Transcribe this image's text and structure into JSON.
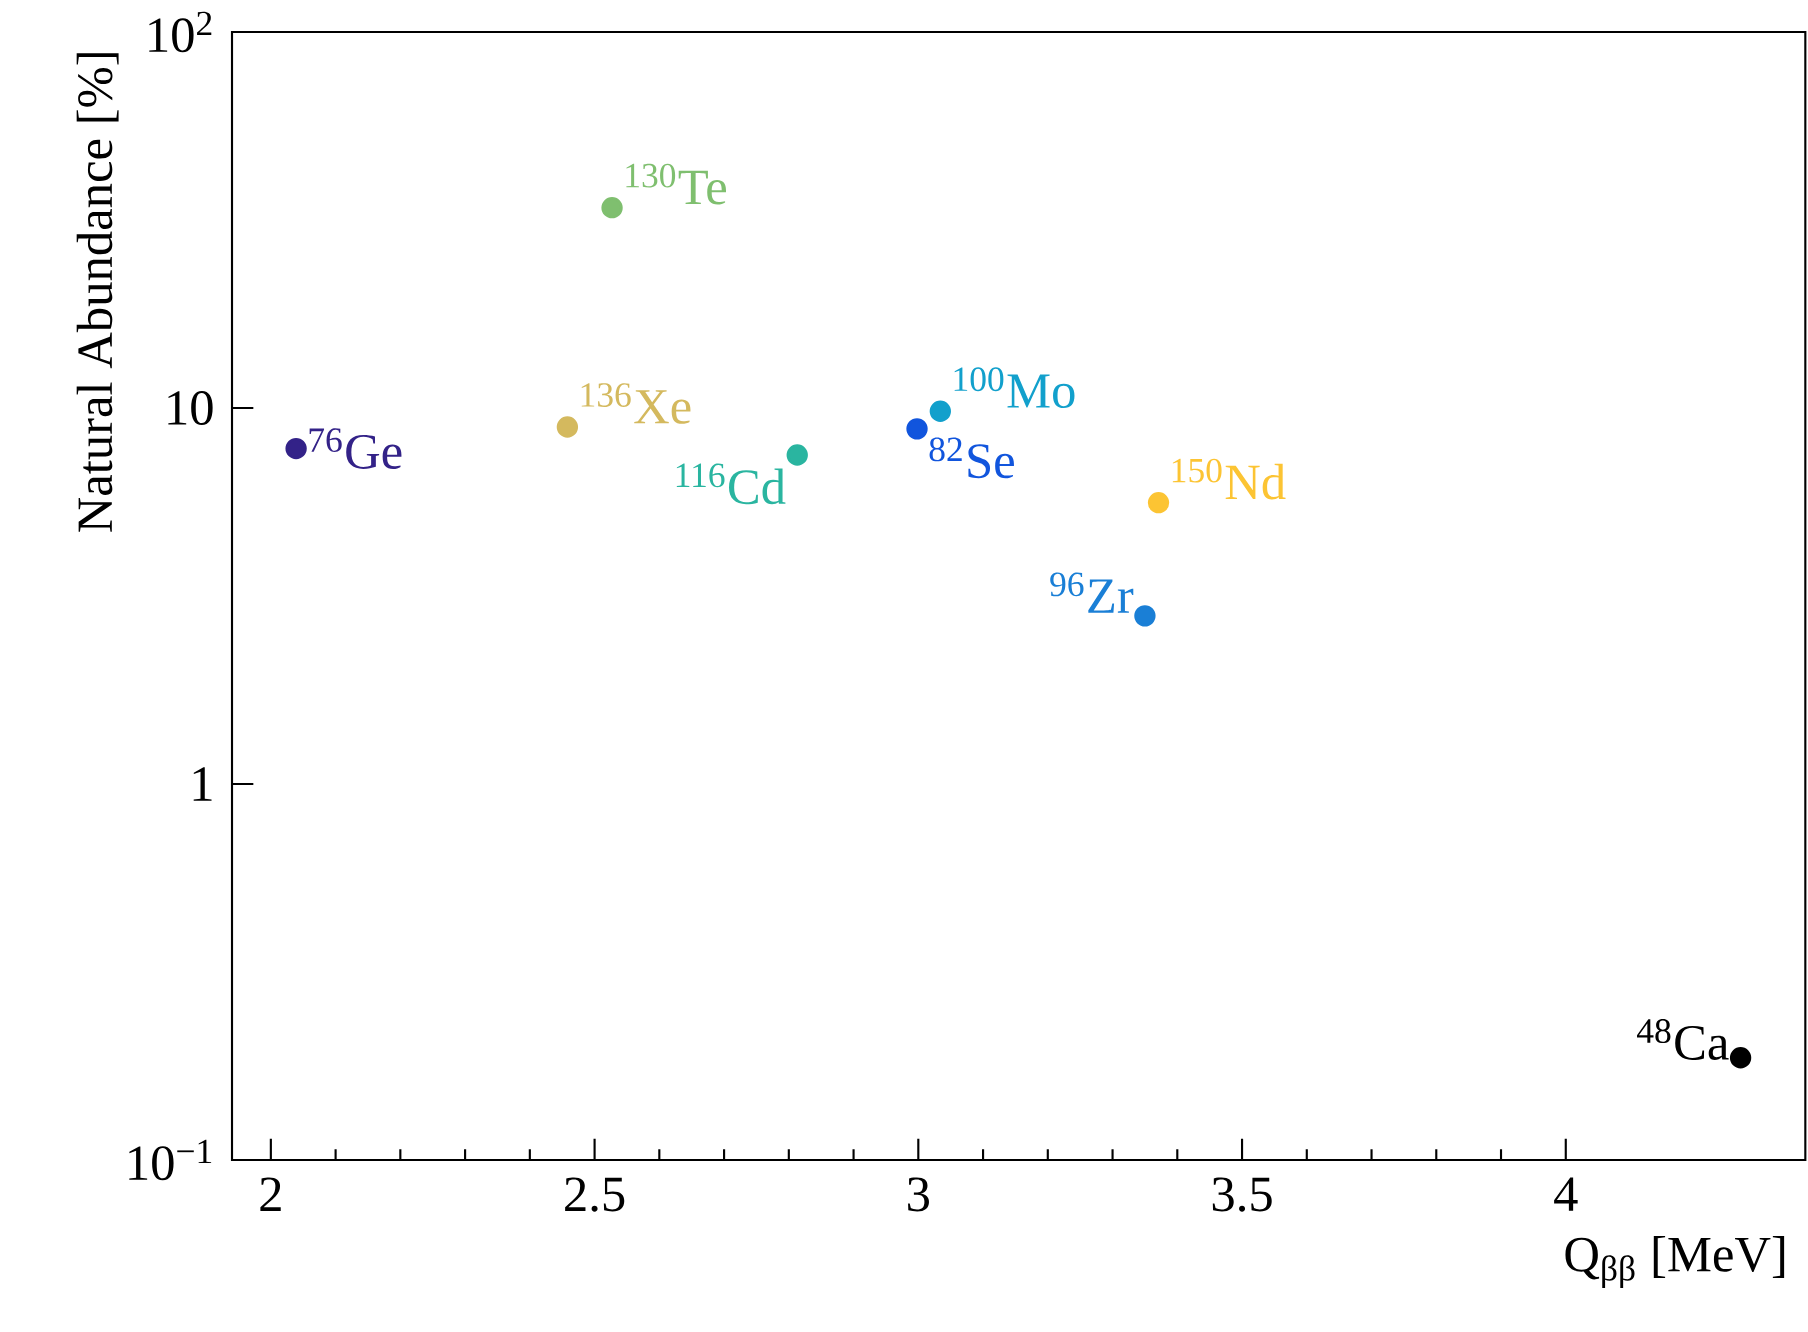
{
  "chart_data": {
    "type": "scatter",
    "xlabel": "Q$_{ββ}$ [MeV]",
    "ylabel": "Natural Abundance [%]",
    "xlim": [
      1.94,
      4.37
    ],
    "xticks": [
      2,
      2.5,
      3,
      3.5,
      4
    ],
    "ylim": [
      0.1,
      100
    ],
    "yticks": [
      {
        "value": 0.1,
        "label": "10$^{−1}$"
      },
      1,
      10,
      {
        "value": 100,
        "label": "10$^{2}$"
      }
    ],
    "log": "y",
    "grid": false,
    "legend": false,
    "marker": "circle",
    "series": [
      {
        "name": "$^{76}$Ge",
        "color": "#332288",
        "x": [
          2.039
        ],
        "values": [
          7.8
        ]
      },
      {
        "name": "$^{136}$Xe",
        "color": "#d4b95e",
        "x": [
          2.458
        ],
        "values": [
          8.9
        ]
      },
      {
        "name": "$^{130}$Te",
        "color": "#7fbf6f",
        "x": [
          2.527
        ],
        "values": [
          34.1
        ]
      },
      {
        "name": "$^{116}$Cd",
        "color": "#2ab5a0",
        "x": [
          2.813
        ],
        "values": [
          7.5
        ]
      },
      {
        "name": "$^{82}$Se",
        "color": "#1155dd",
        "x": [
          2.998
        ],
        "values": [
          8.8
        ]
      },
      {
        "name": "$^{100}$Mo",
        "color": "#12a0cc",
        "x": [
          3.034
        ],
        "values": [
          9.8
        ]
      },
      {
        "name": "$^{96}$Zr",
        "color": "#1a7fd6",
        "x": [
          3.35
        ],
        "values": [
          2.8
        ]
      },
      {
        "name": "$^{150}$Nd",
        "color": "#fcc433",
        "x": [
          3.371
        ],
        "values": [
          5.6
        ]
      },
      {
        "name": "$^{48}$Ca",
        "color": "#000000",
        "x": [
          4.27
        ],
        "values": [
          0.187
        ]
      }
    ]
  }
}
